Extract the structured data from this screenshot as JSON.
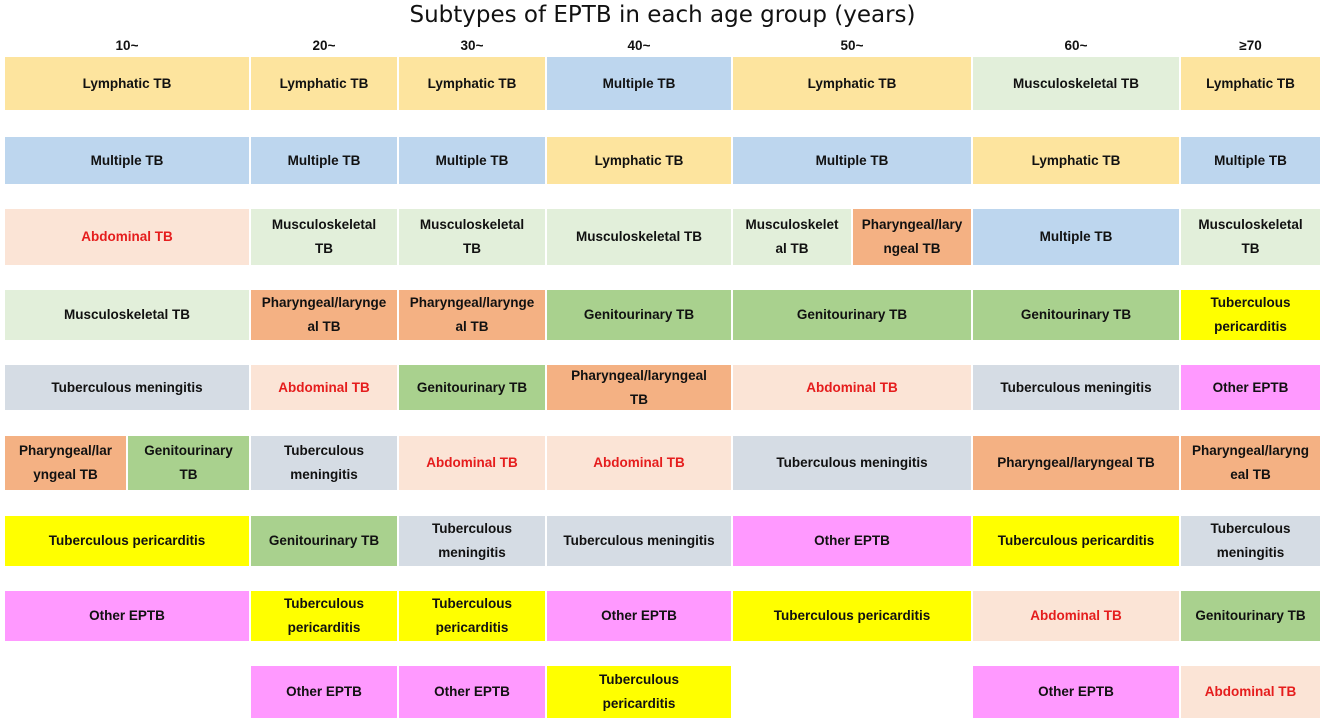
{
  "title": "Subtypes of EPTB in each age group (years)",
  "colors": {
    "Lymphatic TB": "#fde49e",
    "Multiple TB": "#bdd6ee",
    "Abdominal TB": "#fbe4d6",
    "Musculoskeletal TB": "#e2efda",
    "Tuberculous meningitis": "#d5dce4",
    "Pharyngeal/laryngeal TB": "#f4b183",
    "Genitourinary TB": "#a9d18e",
    "Tuberculous pericarditis": "#ffff00",
    "Other EPTB": "#ff99ff",
    "abdominal_text": "#e51d1d"
  },
  "age_groups": [
    "10~",
    "20~",
    "30~",
    "40~",
    "50~",
    "60~",
    "≥70"
  ],
  "columns": [
    {
      "age": "10~",
      "ranks": [
        [
          {
            "type": "Lymphatic TB",
            "text": "Lymphatic TB"
          }
        ],
        [
          {
            "type": "Multiple TB",
            "text": "Multiple TB"
          }
        ],
        [
          {
            "type": "Abdominal TB",
            "text": "Abdominal TB"
          }
        ],
        [
          {
            "type": "Musculoskeletal TB",
            "text": "Musculoskeletal TB"
          }
        ],
        [
          {
            "type": "Tuberculous meningitis",
            "text": "Tuberculous meningitis"
          }
        ],
        [
          {
            "type": "Pharyngeal/laryngeal TB",
            "text": "Pharyngeal/lar\nyngeal TB"
          },
          {
            "type": "Genitourinary TB",
            "text": "Genitourinary\nTB"
          }
        ],
        [
          {
            "type": "Tuberculous pericarditis",
            "text": "Tuberculous pericarditis"
          }
        ],
        [
          {
            "type": "Other EPTB",
            "text": "Other EPTB"
          }
        ]
      ]
    },
    {
      "age": "20~",
      "ranks": [
        [
          {
            "type": "Lymphatic TB",
            "text": "Lymphatic TB"
          }
        ],
        [
          {
            "type": "Multiple TB",
            "text": "Multiple TB"
          }
        ],
        [
          {
            "type": "Musculoskeletal TB",
            "text": "Musculoskeletal\nTB"
          }
        ],
        [
          {
            "type": "Pharyngeal/laryngeal TB",
            "text": "Pharyngeal/larynge\nal TB"
          }
        ],
        [
          {
            "type": "Abdominal TB",
            "text": "Abdominal TB"
          }
        ],
        [
          {
            "type": "Tuberculous meningitis",
            "text": "Tuberculous\nmeningitis"
          }
        ],
        [
          {
            "type": "Genitourinary TB",
            "text": "Genitourinary TB"
          }
        ],
        [
          {
            "type": "Tuberculous pericarditis",
            "text": "Tuberculous\npericarditis"
          }
        ],
        [
          {
            "type": "Other EPTB",
            "text": "Other EPTB"
          }
        ]
      ]
    },
    {
      "age": "30~",
      "ranks": [
        [
          {
            "type": "Lymphatic TB",
            "text": "Lymphatic TB"
          }
        ],
        [
          {
            "type": "Multiple TB",
            "text": "Multiple TB"
          }
        ],
        [
          {
            "type": "Musculoskeletal TB",
            "text": "Musculoskeletal\nTB"
          }
        ],
        [
          {
            "type": "Pharyngeal/laryngeal TB",
            "text": "Pharyngeal/larynge\nal TB"
          }
        ],
        [
          {
            "type": "Genitourinary TB",
            "text": "Genitourinary TB"
          }
        ],
        [
          {
            "type": "Abdominal TB",
            "text": "Abdominal TB"
          }
        ],
        [
          {
            "type": "Tuberculous meningitis",
            "text": "Tuberculous\nmeningitis"
          }
        ],
        [
          {
            "type": "Tuberculous pericarditis",
            "text": "Tuberculous\npericarditis"
          }
        ],
        [
          {
            "type": "Other EPTB",
            "text": "Other EPTB"
          }
        ]
      ]
    },
    {
      "age": "40~",
      "ranks": [
        [
          {
            "type": "Multiple TB",
            "text": "Multiple TB"
          }
        ],
        [
          {
            "type": "Lymphatic TB",
            "text": "Lymphatic TB"
          }
        ],
        [
          {
            "type": "Musculoskeletal TB",
            "text": "Musculoskeletal TB"
          }
        ],
        [
          {
            "type": "Genitourinary TB",
            "text": "Genitourinary TB"
          }
        ],
        [
          {
            "type": "Pharyngeal/laryngeal TB",
            "text": "Pharyngeal/laryngeal\nTB"
          }
        ],
        [
          {
            "type": "Abdominal TB",
            "text": "Abdominal TB"
          }
        ],
        [
          {
            "type": "Tuberculous meningitis",
            "text": "Tuberculous meningitis"
          }
        ],
        [
          {
            "type": "Other EPTB",
            "text": "Other EPTB"
          }
        ],
        [
          {
            "type": "Tuberculous pericarditis",
            "text": "Tuberculous\npericarditis"
          }
        ]
      ]
    },
    {
      "age": "50~",
      "ranks": [
        [
          {
            "type": "Lymphatic TB",
            "text": "Lymphatic TB"
          }
        ],
        [
          {
            "type": "Multiple TB",
            "text": "Multiple TB"
          }
        ],
        [
          {
            "type": "Musculoskeletal TB",
            "text": "Musculoskelet\nal TB"
          },
          {
            "type": "Pharyngeal/laryngeal TB",
            "text": "Pharyngeal/lary\nngeal TB"
          }
        ],
        [
          {
            "type": "Genitourinary TB",
            "text": "Genitourinary TB"
          }
        ],
        [
          {
            "type": "Abdominal TB",
            "text": "Abdominal TB"
          }
        ],
        [
          {
            "type": "Tuberculous meningitis",
            "text": "Tuberculous meningitis"
          }
        ],
        [
          {
            "type": "Other EPTB",
            "text": "Other EPTB"
          }
        ],
        [
          {
            "type": "Tuberculous pericarditis",
            "text": "Tuberculous pericarditis"
          }
        ]
      ]
    },
    {
      "age": "60~",
      "ranks": [
        [
          {
            "type": "Musculoskeletal TB",
            "text": "Musculoskeletal TB"
          }
        ],
        [
          {
            "type": "Lymphatic TB",
            "text": "Lymphatic TB"
          }
        ],
        [
          {
            "type": "Multiple TB",
            "text": "Multiple TB"
          }
        ],
        [
          {
            "type": "Genitourinary TB",
            "text": "Genitourinary TB"
          }
        ],
        [
          {
            "type": "Tuberculous meningitis",
            "text": "Tuberculous meningitis"
          }
        ],
        [
          {
            "type": "Pharyngeal/laryngeal TB",
            "text": "Pharyngeal/laryngeal TB"
          }
        ],
        [
          {
            "type": "Tuberculous pericarditis",
            "text": "Tuberculous pericarditis"
          }
        ],
        [
          {
            "type": "Abdominal TB",
            "text": "Abdominal TB"
          }
        ],
        [
          {
            "type": "Other EPTB",
            "text": "Other EPTB"
          }
        ]
      ]
    },
    {
      "age": "≥70",
      "ranks": [
        [
          {
            "type": "Lymphatic TB",
            "text": "Lymphatic TB"
          }
        ],
        [
          {
            "type": "Multiple TB",
            "text": "Multiple TB"
          }
        ],
        [
          {
            "type": "Musculoskeletal TB",
            "text": "Musculoskeletal\nTB"
          }
        ],
        [
          {
            "type": "Tuberculous pericarditis",
            "text": "Tuberculous\npericarditis"
          }
        ],
        [
          {
            "type": "Other EPTB",
            "text": "Other EPTB"
          }
        ],
        [
          {
            "type": "Pharyngeal/laryngeal TB",
            "text": "Pharyngeal/laryng\neal TB"
          }
        ],
        [
          {
            "type": "Tuberculous meningitis",
            "text": "Tuberculous\nmeningitis"
          }
        ],
        [
          {
            "type": "Genitourinary TB",
            "text": "Genitourinary TB"
          }
        ],
        [
          {
            "type": "Abdominal TB",
            "text": "Abdominal TB"
          }
        ]
      ]
    }
  ]
}
